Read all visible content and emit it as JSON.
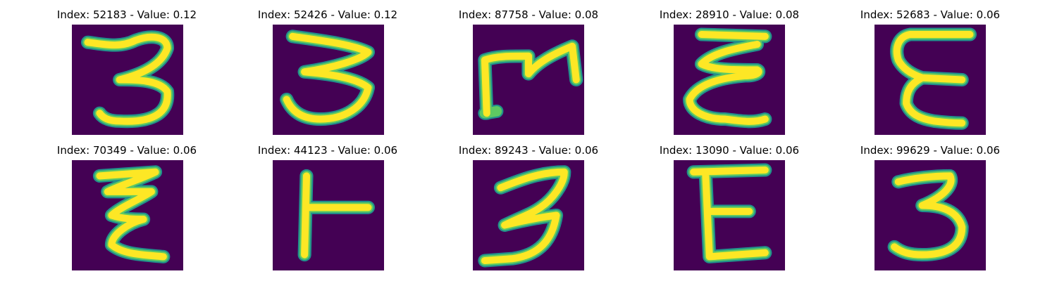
{
  "colors": {
    "background": "#440154",
    "stroke_edge": "#21918c",
    "stroke_mid": "#5ec962",
    "stroke_core": "#fde725"
  },
  "panels": [
    {
      "title": "Index: 52183 - Value: 0.12",
      "glyph": "3"
    },
    {
      "title": "Index: 52426 - Value: 0.12",
      "glyph": "3"
    },
    {
      "title": "Index: 87758 - Value: 0.08",
      "glyph": "m-shape"
    },
    {
      "title": "Index: 28910 - Value: 0.08",
      "glyph": "cursive-E"
    },
    {
      "title": "Index: 52683 - Value: 0.06",
      "glyph": "E"
    },
    {
      "title": "Index: 70349 - Value: 0.06",
      "glyph": "cursive-E"
    },
    {
      "title": "Index: 44123 - Value: 0.06",
      "glyph": "T-sideways"
    },
    {
      "title": "Index: 89243 - Value: 0.06",
      "glyph": "3"
    },
    {
      "title": "Index: 13090 - Value: 0.06",
      "glyph": "E"
    },
    {
      "title": "Index: 99629 - Value: 0.06",
      "glyph": "3"
    }
  ]
}
